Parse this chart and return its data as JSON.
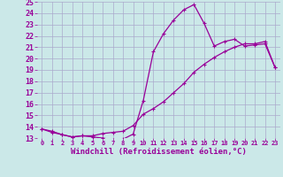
{
  "xlabel": "Windchill (Refroidissement éolien,°C)",
  "xlim": [
    -0.5,
    23.5
  ],
  "ylim": [
    13,
    25
  ],
  "yticks": [
    13,
    14,
    15,
    16,
    17,
    18,
    19,
    20,
    21,
    22,
    23,
    24,
    25
  ],
  "xticks": [
    0,
    1,
    2,
    3,
    4,
    5,
    6,
    7,
    8,
    9,
    10,
    11,
    12,
    13,
    14,
    15,
    16,
    17,
    18,
    19,
    20,
    21,
    22,
    23
  ],
  "background_color": "#cbe8e8",
  "grid_color": "#aaaacc",
  "line_color": "#990099",
  "line1_x": [
    0,
    1,
    2,
    3,
    4,
    5,
    6,
    7,
    8,
    9,
    10,
    11,
    12,
    13,
    14,
    15,
    16,
    17,
    18,
    19,
    20,
    21,
    22,
    23
  ],
  "line1_y": [
    13.8,
    13.6,
    13.3,
    13.1,
    13.2,
    13.1,
    13.0,
    12.85,
    12.9,
    13.35,
    16.3,
    20.6,
    22.2,
    23.4,
    24.3,
    24.75,
    23.1,
    21.1,
    21.5,
    21.7,
    21.1,
    21.2,
    21.3,
    19.2
  ],
  "line2_x": [
    0,
    1,
    2,
    3,
    4,
    5,
    6,
    7,
    8,
    9,
    10,
    11,
    12,
    13,
    14,
    15,
    16,
    17,
    18,
    19,
    20,
    21,
    22,
    23
  ],
  "line2_y": [
    13.8,
    13.5,
    13.3,
    13.1,
    13.2,
    13.2,
    13.4,
    13.5,
    13.6,
    14.1,
    15.1,
    15.6,
    16.2,
    17.0,
    17.8,
    18.8,
    19.5,
    20.1,
    20.6,
    21.0,
    21.3,
    21.3,
    21.5,
    19.2
  ],
  "marker": "P",
  "markersize": 2.5,
  "linewidth": 0.9,
  "xlabel_fontsize": 6.5,
  "ytick_fontsize": 6,
  "xtick_fontsize": 5
}
